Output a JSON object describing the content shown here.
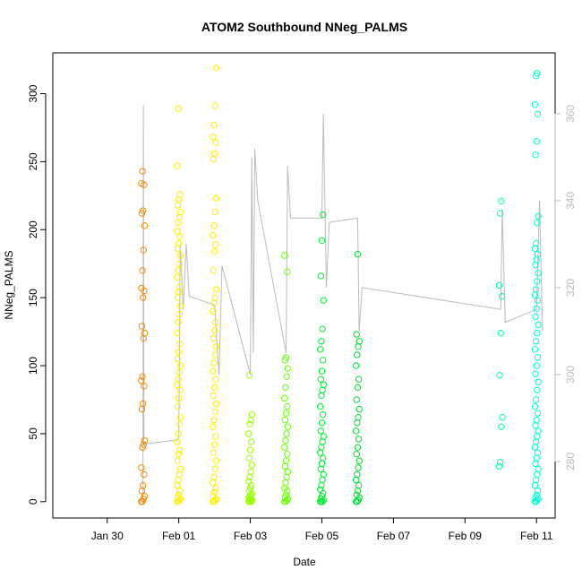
{
  "chart_data": {
    "type": "scatter",
    "title": "ATOM2 Southbound NNeg_PALMS",
    "xlabel": "Date",
    "ylabel": "NNeg_PALMS",
    "x_axis": {
      "type": "date",
      "range": [
        "2017-01-29",
        "2017-02-11"
      ],
      "ticks": [
        {
          "value": "2017-01-30",
          "label": "Jan 30"
        },
        {
          "value": "2017-02-01",
          "label": "Feb 01"
        },
        {
          "value": "2017-02-03",
          "label": "Feb 03"
        },
        {
          "value": "2017-02-05",
          "label": "Feb 05"
        },
        {
          "value": "2017-02-07",
          "label": "Feb 07"
        },
        {
          "value": "2017-02-09",
          "label": "Feb 09"
        },
        {
          "value": "2017-02-11",
          "label": "Feb 11"
        }
      ]
    },
    "y_axis_left": {
      "range": [
        -12,
        330
      ],
      "ticks": [
        0,
        50,
        100,
        150,
        200,
        250,
        300
      ]
    },
    "y_axis_right": {
      "range": [
        267,
        374
      ],
      "ticks": [
        280,
        300,
        320,
        340,
        360
      ],
      "color": "#bbbbbb"
    },
    "grid": false,
    "legend": "none",
    "point_series": [
      {
        "x": "2017-01-31T00:00",
        "color": "#f08a00",
        "y": [
          0,
          0,
          2,
          4,
          8,
          12,
          20,
          25,
          40,
          42,
          45,
          68,
          72,
          85,
          89,
          92,
          120,
          124,
          129,
          150,
          155,
          157,
          170,
          185,
          203,
          212,
          214,
          233,
          234,
          243
        ]
      },
      {
        "x": "2017-02-01T00:00",
        "color": "#ffee00",
        "y": [
          0,
          0,
          1,
          2,
          3,
          5,
          8,
          12,
          16,
          20,
          24,
          30,
          35,
          38,
          44,
          50,
          57,
          62,
          70,
          76,
          82,
          86,
          90,
          95,
          100,
          105,
          110,
          116,
          124,
          132,
          138,
          144,
          150,
          154,
          158,
          165,
          170,
          175,
          181,
          186,
          190,
          195,
          199,
          205,
          209,
          213,
          218,
          222,
          226,
          247,
          289
        ]
      },
      {
        "x": "2017-02-02T00:00",
        "color": "#ffee00",
        "y": [
          0,
          0,
          1,
          2,
          4,
          7,
          10,
          14,
          18,
          24,
          30,
          36,
          42,
          48,
          55,
          60,
          66,
          72,
          78,
          84,
          90,
          96,
          102,
          108,
          114,
          120,
          126,
          132,
          140,
          146,
          150,
          156,
          170,
          184,
          189,
          196,
          203,
          213,
          223,
          252,
          256,
          264,
          268,
          277,
          291,
          319
        ]
      },
      {
        "x": "2017-02-03T00:00",
        "color": "#99ff00",
        "y": [
          0,
          0,
          0,
          1,
          1,
          2,
          2,
          3,
          4,
          5,
          6,
          8,
          10,
          12,
          15,
          18,
          22,
          27,
          32,
          38,
          44,
          50,
          57,
          60,
          64,
          93
        ]
      },
      {
        "x": "2017-02-04T00:00",
        "color": "#66ff00",
        "y": [
          0,
          0,
          1,
          2,
          3,
          5,
          8,
          10,
          14,
          18,
          22,
          26,
          30,
          35,
          40,
          45,
          50,
          55,
          60,
          65,
          70,
          76,
          84,
          92,
          98,
          104,
          106,
          169,
          181
        ]
      },
      {
        "x": "2017-02-05T00:00",
        "color": "#00ee33",
        "y": [
          0,
          0,
          0,
          1,
          2,
          4,
          6,
          9,
          12,
          16,
          20,
          24,
          28,
          32,
          36,
          40,
          44,
          48,
          52,
          58,
          64,
          70,
          78,
          82,
          86,
          90,
          96,
          104,
          112,
          118,
          127,
          148,
          166,
          192,
          211
        ]
      },
      {
        "x": "2017-02-06T00:00",
        "color": "#00dd33",
        "y": [
          0,
          0,
          1,
          3,
          5,
          8,
          12,
          16,
          20,
          25,
          30,
          35,
          40,
          46,
          52,
          58,
          62,
          68,
          75,
          84,
          90,
          100,
          108,
          114,
          118,
          123,
          182
        ]
      },
      {
        "x": "2017-02-10T00:00",
        "color": "#00ffaa",
        "y": [
          26,
          29,
          55,
          62,
          93,
          124,
          151,
          159,
          212,
          221
        ]
      },
      {
        "x": "2017-02-11T00:00",
        "color": "#00ffcc",
        "y": [
          0,
          0,
          1,
          2,
          3,
          5,
          8,
          12,
          16,
          20,
          24,
          28,
          32,
          36,
          40,
          44,
          48,
          52,
          56,
          60,
          65,
          70,
          75,
          82,
          88,
          94,
          100,
          106,
          112,
          118,
          124,
          130,
          136,
          142,
          148,
          152,
          156,
          162,
          168,
          174,
          178,
          182,
          186,
          190,
          205,
          210,
          255,
          265,
          285,
          292,
          313,
          315
        ]
      }
    ],
    "line_series": {
      "axis": "right",
      "color": "#bbbbbb",
      "points": [
        [
          "2017-01-31T00:00",
          270.0
        ],
        [
          "2017-01-31T00:05",
          303.0
        ],
        [
          "2017-01-31T00:15",
          362.0
        ],
        [
          "2017-01-31T00:25",
          327.0
        ],
        [
          "2017-01-31T00:40",
          284.0
        ],
        [
          "2017-02-01T00:00",
          285.0
        ],
        [
          "2017-02-01T01:00",
          330.0
        ],
        [
          "2017-02-01T03:00",
          315.0
        ],
        [
          "2017-02-01T05:00",
          330.0
        ],
        [
          "2017-02-01T07:00",
          318.0
        ],
        [
          "2017-02-02T00:00",
          316.0
        ],
        [
          "2017-02-02T03:00",
          300.0
        ],
        [
          "2017-02-02T05:00",
          325.0
        ],
        [
          "2017-02-03T00:00",
          300.0
        ],
        [
          "2017-02-03T01:00",
          350.0
        ],
        [
          "2017-02-03T02:00",
          305.0
        ],
        [
          "2017-02-03T03:00",
          352.0
        ],
        [
          "2017-02-03T05:00",
          340.0
        ],
        [
          "2017-02-04T00:00",
          305.0
        ],
        [
          "2017-02-04T01:00",
          348.0
        ],
        [
          "2017-02-04T03:00",
          336.0
        ],
        [
          "2017-02-05T00:00",
          336.0
        ],
        [
          "2017-02-05T01:00",
          360.0
        ],
        [
          "2017-02-05T03:00",
          320.0
        ],
        [
          "2017-02-05T05:00",
          335.0
        ],
        [
          "2017-02-06T00:00",
          336.0
        ],
        [
          "2017-02-06T01:00",
          310.0
        ],
        [
          "2017-02-06T03:00",
          320.0
        ],
        [
          "2017-02-10T00:00",
          315.0
        ],
        [
          "2017-02-10T01:00",
          338.0
        ],
        [
          "2017-02-10T03:00",
          312.0
        ],
        [
          "2017-02-11T00:00",
          315.0
        ],
        [
          "2017-02-11T02:00",
          340.0
        ],
        [
          "2017-02-11T04:00",
          310.0
        ]
      ]
    }
  }
}
